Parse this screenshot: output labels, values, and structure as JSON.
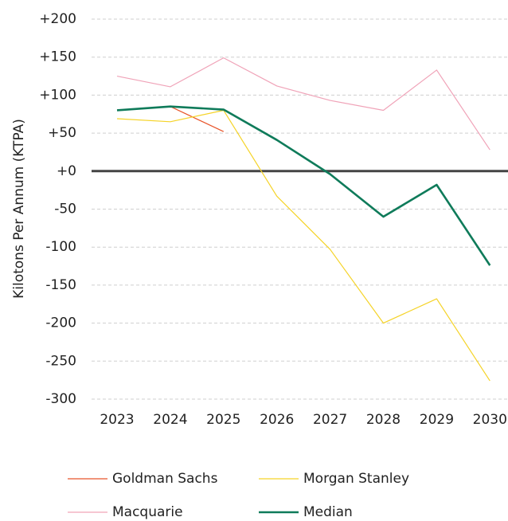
{
  "chart_data": {
    "type": "line",
    "y_label": "Kilotons Per Annum (KTPA)",
    "categories": [
      "2023",
      "2024",
      "2025",
      "2026",
      "2027",
      "2028",
      "2029",
      "2030"
    ],
    "series": [
      {
        "name": "Goldman Sachs",
        "color": "#e8542a",
        "values": [
          null,
          85,
          52,
          null,
          null,
          null,
          null,
          null
        ]
      },
      {
        "name": "Morgan Stanley",
        "color": "#f5d327",
        "values": [
          69,
          65,
          80,
          -33,
          -103,
          -200,
          -168,
          -276
        ]
      },
      {
        "name": "Macquarie",
        "color": "#f0a3b8",
        "values": [
          125,
          111,
          149,
          112,
          93,
          80,
          133,
          28
        ]
      },
      {
        "name": "Median",
        "color": "#0f7b5a",
        "values": [
          80,
          85,
          81,
          41,
          -4,
          -60,
          -18,
          -124
        ]
      }
    ],
    "ylim": [
      -300,
      200
    ],
    "yticks": [
      {
        "value": 200,
        "label": "+200"
      },
      {
        "value": 150,
        "label": "+150"
      },
      {
        "value": 100,
        "label": "+100"
      },
      {
        "value": 50,
        "label": "+50"
      },
      {
        "value": 0,
        "label": "+0"
      },
      -50,
      -100,
      -150,
      -200,
      -250,
      -300
    ],
    "grid": true
  }
}
